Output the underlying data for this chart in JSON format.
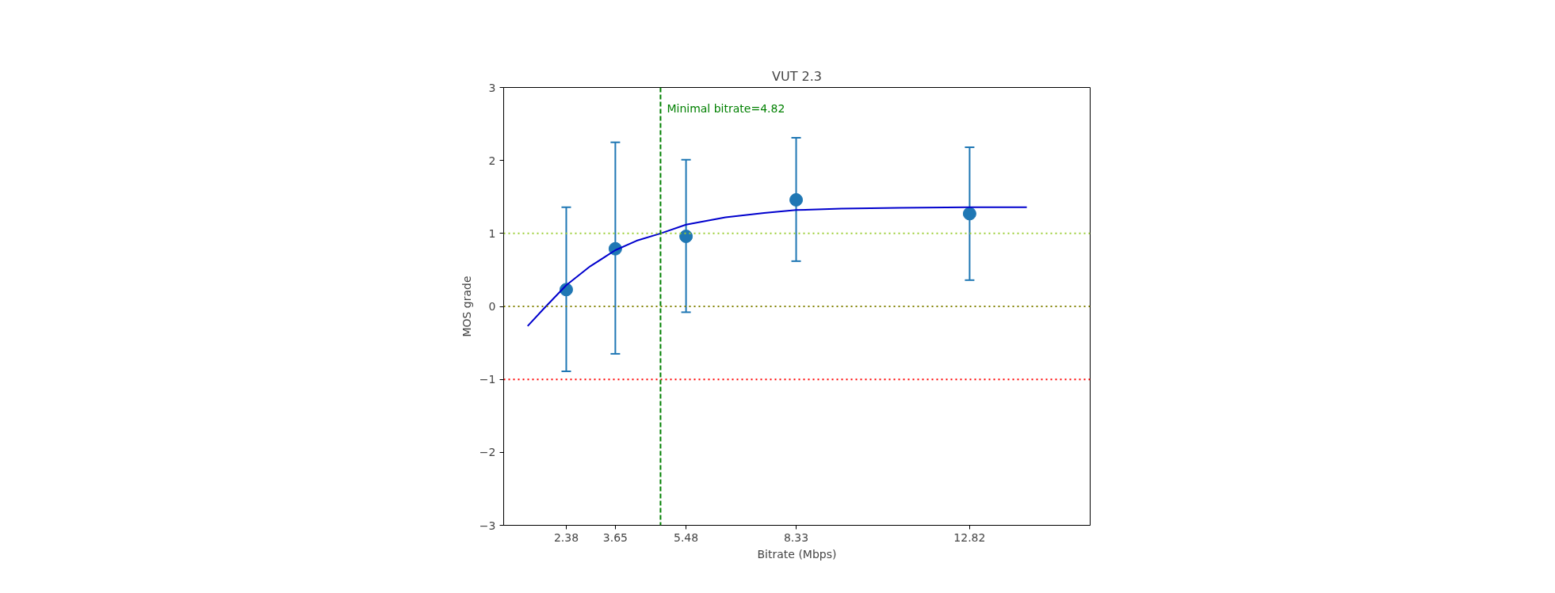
{
  "chart_data": {
    "type": "scatter",
    "title": "VUT 2.3",
    "xlabel": "Bitrate (Mbps)",
    "ylabel": "MOS grade",
    "xlim": [
      0.76,
      15.94
    ],
    "ylim": [
      -3,
      3
    ],
    "xticks": [
      2.38,
      3.65,
      5.48,
      8.33,
      12.82
    ],
    "yticks": [
      -3,
      -2,
      -1,
      0,
      1,
      2,
      3
    ],
    "grid": false,
    "series": [
      {
        "color": "#1f77b4",
        "marker": "circle",
        "x": [
          2.38,
          3.65,
          5.48,
          8.33,
          12.82
        ],
        "values": [
          0.23,
          0.79,
          0.96,
          1.46,
          1.27
        ],
        "errors": [
          [
            -0.89,
            1.36
          ],
          [
            -0.65,
            2.25
          ],
          [
            -0.08,
            2.01
          ],
          [
            0.62,
            2.31
          ],
          [
            0.36,
            2.18
          ]
        ]
      },
      {
        "type": "line",
        "color": "#0000cd",
        "marker": "none",
        "line_style": "solid",
        "x": [
          1.38,
          1.8,
          2.38,
          3.0,
          3.65,
          4.2,
          4.82,
          5.48,
          6.5,
          7.5,
          8.33,
          9.5,
          11,
          12.82,
          14.3
        ],
        "values": [
          -0.27,
          -0.03,
          0.29,
          0.55,
          0.77,
          0.9,
          1.0,
          1.12,
          1.22,
          1.28,
          1.32,
          1.34,
          1.35,
          1.36,
          1.36
        ]
      }
    ],
    "ref_lines": [
      {
        "axis": "y",
        "value": 1,
        "color": "#9acd32",
        "line_style": "dotted"
      },
      {
        "axis": "y",
        "value": 0,
        "color": "#808000",
        "line_style": "dotted"
      },
      {
        "axis": "y",
        "value": -1,
        "color": "#ff0000",
        "line_style": "dotted"
      },
      {
        "axis": "x",
        "value": 4.82,
        "color": "#008000",
        "line_style": "dashed",
        "label": "Minimal bitrate=4.82"
      }
    ]
  }
}
